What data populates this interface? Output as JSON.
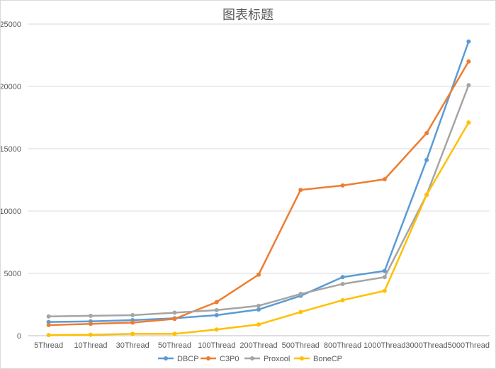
{
  "chart_data": {
    "type": "line",
    "title": "图表标题",
    "xlabel": "",
    "ylabel": "",
    "ylim": [
      0,
      25000
    ],
    "yticks": [
      0,
      5000,
      10000,
      15000,
      20000,
      25000
    ],
    "categories": [
      "5Thread",
      "10Thread",
      "30Thread",
      "50Thread",
      "100Thread",
      "200Thread",
      "500Thread",
      "800Thread",
      "1000Thread",
      "3000Thread",
      "5000Thread"
    ],
    "grid": true,
    "legend_position": "bottom",
    "series": [
      {
        "name": "DBCP",
        "color": "#5B9BD5",
        "values": [
          1100,
          1150,
          1250,
          1400,
          1650,
          2100,
          3200,
          4700,
          5200,
          14100,
          23600
        ]
      },
      {
        "name": "C3P0",
        "color": "#ED7D31",
        "values": [
          850,
          950,
          1050,
          1350,
          2700,
          4900,
          11700,
          12050,
          12550,
          16250,
          22000
        ]
      },
      {
        "name": "Proxool",
        "color": "#A5A5A5",
        "values": [
          1550,
          1600,
          1650,
          1850,
          2050,
          2400,
          3350,
          4150,
          4700,
          11300,
          20100
        ]
      },
      {
        "name": "BoneCP",
        "color": "#FFC000",
        "values": [
          50,
          80,
          150,
          150,
          500,
          900,
          1900,
          2850,
          3600,
          11300,
          17100
        ]
      }
    ]
  }
}
